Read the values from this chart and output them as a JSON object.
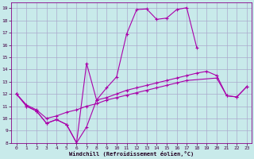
{
  "xlabel": "Windchill (Refroidissement éolien,°C)",
  "background_color": "#c8eaea",
  "grid_color": "#aaaacc",
  "line_color": "#aa00aa",
  "xlim": [
    -0.5,
    23.5
  ],
  "ylim": [
    8,
    19.5
  ],
  "xticks": [
    0,
    1,
    2,
    3,
    4,
    5,
    6,
    7,
    8,
    9,
    10,
    11,
    12,
    13,
    14,
    15,
    16,
    17,
    18,
    19,
    20,
    21,
    22,
    23
  ],
  "yticks": [
    8,
    9,
    10,
    11,
    12,
    13,
    14,
    15,
    16,
    17,
    18,
    19
  ],
  "line1_x": [
    0,
    1,
    2,
    3,
    4,
    5,
    6,
    7,
    8,
    9,
    10,
    11,
    12,
    13,
    14,
    15,
    16,
    17,
    18,
    19,
    20,
    21,
    22,
    23
  ],
  "line1_y": [
    12,
    11,
    10.6,
    9.6,
    9.9,
    9.5,
    8.0,
    9.3,
    11.5,
    11.7,
    12.0,
    12.3,
    12.5,
    12.7,
    12.9,
    13.1,
    13.3,
    13.5,
    13.7,
    13.85,
    13.5,
    11.85,
    11.75,
    12.6
  ],
  "line2_x": [
    0,
    1,
    2,
    3,
    4,
    5,
    6,
    7,
    8,
    9,
    10,
    11,
    12,
    13,
    14,
    15,
    16,
    17,
    18
  ],
  "line2_y": [
    12,
    11,
    10.6,
    9.6,
    9.9,
    9.5,
    8.0,
    14.5,
    11.5,
    12.5,
    13.4,
    16.9,
    18.9,
    18.95,
    18.1,
    18.2,
    18.9,
    19.05,
    15.8
  ],
  "line3_x": [
    0,
    1,
    2,
    3,
    4,
    5,
    6,
    7,
    8,
    9,
    10,
    11,
    12,
    13,
    14,
    15,
    16,
    17,
    20,
    21,
    22,
    23
  ],
  "line3_y": [
    12,
    11.1,
    10.7,
    10.0,
    10.2,
    10.5,
    10.7,
    11.0,
    11.2,
    11.5,
    11.7,
    11.9,
    12.1,
    12.3,
    12.5,
    12.7,
    12.9,
    13.1,
    13.3,
    11.85,
    11.75,
    12.6
  ]
}
